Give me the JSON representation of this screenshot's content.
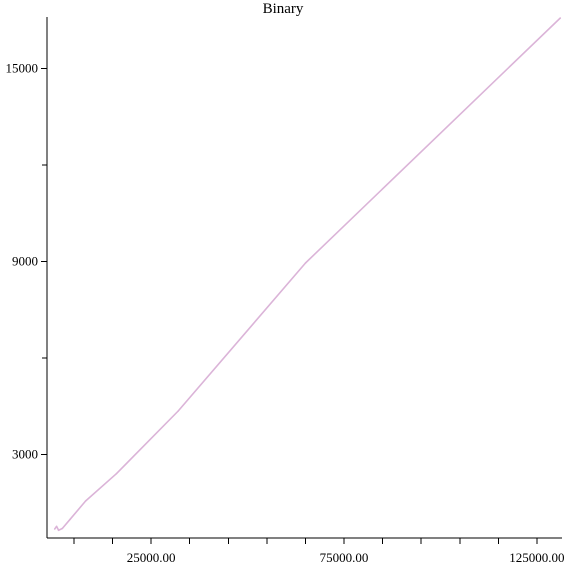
{
  "chart_data": {
    "type": "line",
    "title": "Binary",
    "xlabel": "",
    "ylabel": "",
    "xlim": [
      -2000,
      131500
    ],
    "ylim": [
      400,
      16600
    ],
    "x_major_ticks": [
      25000,
      75000,
      125000
    ],
    "x_minor_ticks": [
      5000,
      15000,
      35000,
      45000,
      55000,
      65000,
      85000,
      95000,
      105000,
      115000
    ],
    "x_tick_labels": [
      "25000.00",
      "75000.00",
      "125000.00"
    ],
    "y_major_ticks": [
      3000,
      9000,
      15000
    ],
    "y_minor_ticks": [
      6000,
      12000
    ],
    "y_tick_labels": [
      "3000",
      "9000",
      "15000"
    ],
    "grid": false,
    "series": [
      {
        "color": "#dbb4d8",
        "x": [
          0,
          500,
          1000,
          2000,
          4000,
          8000,
          16000,
          32000,
          65000,
          131072
        ],
        "y": [
          680,
          760,
          640,
          700,
          980,
          1550,
          2400,
          4350,
          8950,
          16570
        ]
      }
    ]
  }
}
